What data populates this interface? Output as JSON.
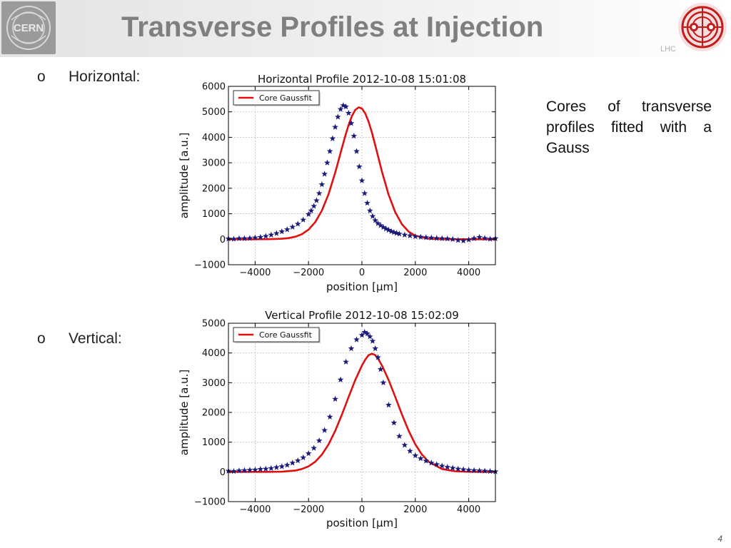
{
  "slide": {
    "title": "Transverse Profiles at Injection",
    "lhc_text": "LHC",
    "bullets": [
      {
        "marker": "o",
        "text": "Horizontal:"
      },
      {
        "marker": "o",
        "text": "Vertical:"
      }
    ],
    "caption": "Cores of transverse profiles fitted with a Gauss",
    "page_number": "4"
  },
  "colors": {
    "data_markers": "#1a1a7a",
    "fit_line": "#e01010",
    "title_gray": "#7f7f7f"
  },
  "chart_data": [
    {
      "type": "scatter",
      "title": "Horizontal Profile 2012-10-08 15:01:08",
      "xlabel": "position [μm]",
      "ylabel": "amplitude [a.u.]",
      "xlim": [
        -5000,
        5000
      ],
      "ylim": [
        -1000,
        6000
      ],
      "xticks": [
        -4000,
        -2000,
        0,
        2000,
        4000
      ],
      "xtick_labels": [
        "−4000",
        "−2000",
        "0",
        "2000",
        "4000"
      ],
      "yticks": [
        -1000,
        0,
        1000,
        2000,
        3000,
        4000,
        5000,
        6000
      ],
      "ytick_labels": [
        "−1000",
        "0",
        "1000",
        "2000",
        "3000",
        "4000",
        "5000",
        "6000"
      ],
      "grid": true,
      "legend_position": "top-left",
      "series": [
        {
          "name": "Core Gaussfit",
          "kind": "line",
          "x": [
            -5000,
            -4500,
            -4000,
            -3500,
            -3000,
            -2750,
            -2500,
            -2250,
            -2000,
            -1750,
            -1500,
            -1250,
            -1000,
            -875,
            -750,
            -625,
            -500,
            -375,
            -250,
            -125,
            0,
            125,
            250,
            375,
            500,
            750,
            1000,
            1250,
            1500,
            1750,
            2000,
            2500,
            3000,
            3500,
            4000,
            4500,
            5000
          ],
          "y": [
            0,
            0,
            0,
            3,
            20,
            45,
            97,
            197,
            376,
            671,
            1125,
            1770,
            2619,
            3094,
            3580,
            4053,
            4482,
            4833,
            5072,
            5175,
            5128,
            4935,
            4611,
            4183,
            3685,
            2651,
            1745,
            1054,
            584,
            297,
            138,
            22,
            2,
            0,
            0,
            0,
            0
          ]
        },
        {
          "name": "data",
          "kind": "markers",
          "x": [
            -5000,
            -4800,
            -4600,
            -4400,
            -4200,
            -4000,
            -3800,
            -3600,
            -3400,
            -3200,
            -3000,
            -2800,
            -2600,
            -2400,
            -2200,
            -2000,
            -1900,
            -1800,
            -1700,
            -1600,
            -1500,
            -1400,
            -1300,
            -1200,
            -1100,
            -1000,
            -900,
            -800,
            -700,
            -600,
            -500,
            -400,
            -300,
            -200,
            -100,
            0,
            100,
            200,
            300,
            400,
            500,
            600,
            700,
            800,
            900,
            1000,
            1100,
            1200,
            1300,
            1400,
            1600,
            1800,
            2000,
            2200,
            2400,
            2600,
            2800,
            3000,
            3200,
            3400,
            3600,
            3800,
            4000,
            4200,
            4400,
            4600,
            4800,
            5000
          ],
          "y": [
            20,
            10,
            30,
            30,
            40,
            60,
            80,
            120,
            170,
            230,
            300,
            380,
            480,
            600,
            760,
            980,
            1120,
            1300,
            1520,
            1800,
            2150,
            2560,
            3000,
            3450,
            3950,
            4400,
            4800,
            5100,
            5250,
            5200,
            4950,
            4550,
            4050,
            3450,
            2850,
            2300,
            1800,
            1420,
            1120,
            900,
            740,
            620,
            540,
            470,
            410,
            360,
            310,
            270,
            240,
            210,
            170,
            140,
            110,
            90,
            70,
            55,
            40,
            30,
            20,
            0,
            -40,
            -60,
            -20,
            30,
            80,
            40,
            10,
            30
          ]
        }
      ]
    },
    {
      "type": "scatter",
      "title": "Vertical Profile 2012-10-08 15:02:09",
      "xlabel": "position [μm]",
      "ylabel": "amplitude [a.u.]",
      "xlim": [
        -5000,
        5000
      ],
      "ylim": [
        -1000,
        5000
      ],
      "xticks": [
        -4000,
        -2000,
        0,
        2000,
        4000
      ],
      "xtick_labels": [
        "−4000",
        "−2000",
        "0",
        "2000",
        "4000"
      ],
      "yticks": [
        -1000,
        0,
        1000,
        2000,
        3000,
        4000,
        5000
      ],
      "ytick_labels": [
        "−1000",
        "0",
        "1000",
        "2000",
        "3000",
        "4000",
        "5000"
      ],
      "grid": true,
      "legend_position": "top-left",
      "series": [
        {
          "name": "Core Gaussfit",
          "kind": "line",
          "x": [
            -5000,
            -4500,
            -4000,
            -3500,
            -3000,
            -2500,
            -2250,
            -2000,
            -1750,
            -1500,
            -1250,
            -1000,
            -750,
            -500,
            -250,
            0,
            125,
            250,
            375,
            500,
            625,
            750,
            1000,
            1250,
            1500,
            1750,
            2000,
            2250,
            2500,
            3000,
            3500,
            4000,
            4500,
            5000
          ],
          "y": [
            0,
            0,
            0,
            1,
            7,
            46,
            96,
            187,
            341,
            580,
            926,
            1382,
            1927,
            2517,
            3091,
            3579,
            3775,
            3928,
            3977,
            3928,
            3775,
            3579,
            3091,
            2517,
            1927,
            1382,
            926,
            580,
            341,
            96,
            20,
            3,
            0,
            0
          ]
        },
        {
          "name": "data",
          "kind": "markers",
          "x": [
            -5000,
            -4800,
            -4600,
            -4400,
            -4200,
            -4000,
            -3800,
            -3600,
            -3400,
            -3200,
            -3000,
            -2800,
            -2600,
            -2400,
            -2200,
            -2000,
            -1800,
            -1600,
            -1400,
            -1200,
            -1000,
            -800,
            -600,
            -400,
            -200,
            0,
            100,
            200,
            300,
            400,
            500,
            600,
            700,
            800,
            1000,
            1200,
            1400,
            1600,
            1800,
            2000,
            2200,
            2400,
            2600,
            2800,
            3000,
            3200,
            3400,
            3600,
            3800,
            4000,
            4200,
            4400,
            4600,
            4800,
            5000
          ],
          "y": [
            30,
            20,
            40,
            50,
            60,
            70,
            90,
            100,
            120,
            150,
            180,
            230,
            300,
            380,
            480,
            620,
            800,
            1050,
            1400,
            1850,
            2450,
            3100,
            3700,
            4150,
            4450,
            4600,
            4700,
            4650,
            4550,
            4400,
            4150,
            3850,
            3450,
            3000,
            2250,
            1650,
            1200,
            900,
            700,
            550,
            450,
            370,
            300,
            250,
            200,
            160,
            130,
            100,
            80,
            60,
            50,
            40,
            30,
            20,
            10
          ]
        }
      ]
    }
  ]
}
